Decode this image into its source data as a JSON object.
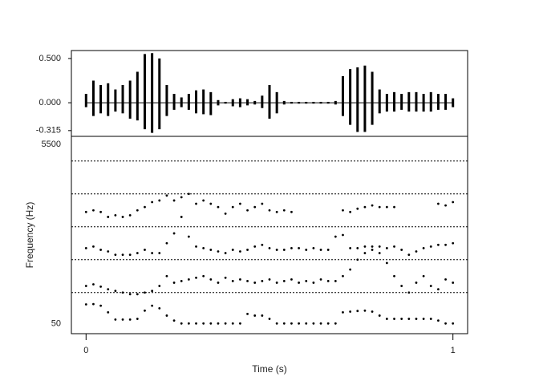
{
  "chart_data": [
    {
      "type": "waveform",
      "x": [
        0,
        0.02,
        0.04,
        0.06,
        0.08,
        0.1,
        0.12,
        0.14,
        0.16,
        0.18,
        0.2,
        0.22,
        0.24,
        0.26,
        0.28,
        0.3,
        0.32,
        0.34,
        0.36,
        0.38,
        0.4,
        0.42,
        0.44,
        0.46,
        0.48,
        0.5,
        0.52,
        0.54,
        0.56,
        0.58,
        0.6,
        0.62,
        0.64,
        0.66,
        0.68,
        0.7,
        0.72,
        0.74,
        0.76,
        0.78,
        0.8,
        0.82,
        0.84,
        0.86,
        0.88,
        0.9,
        0.92,
        0.94,
        0.96,
        0.98,
        1
      ],
      "upper": [
        0.1,
        0.25,
        0.2,
        0.22,
        0.15,
        0.2,
        0.25,
        0.35,
        0.55,
        0.56,
        0.5,
        0.2,
        0.1,
        0.06,
        0.1,
        0.14,
        0.15,
        0.12,
        0.03,
        0.01,
        0.04,
        0.05,
        0.04,
        0.02,
        0.08,
        0.2,
        0.12,
        0.02,
        0.01,
        0.01,
        0.01,
        0.01,
        0.01,
        0.01,
        0.02,
        0.3,
        0.38,
        0.4,
        0.42,
        0.35,
        0.15,
        0.1,
        0.12,
        0.1,
        0.12,
        0.12,
        0.1,
        0.12,
        0.1,
        0.1,
        0.05
      ],
      "lower": [
        -0.05,
        -0.15,
        -0.12,
        -0.15,
        -0.1,
        -0.12,
        -0.18,
        -0.2,
        -0.3,
        -0.34,
        -0.3,
        -0.15,
        -0.08,
        -0.05,
        -0.08,
        -0.12,
        -0.13,
        -0.14,
        -0.03,
        -0.01,
        -0.04,
        -0.05,
        -0.03,
        -0.02,
        -0.06,
        -0.18,
        -0.12,
        -0.02,
        -0.01,
        -0.01,
        -0.01,
        -0.01,
        -0.01,
        -0.01,
        -0.02,
        -0.15,
        -0.25,
        -0.33,
        -0.33,
        -0.25,
        -0.12,
        -0.1,
        -0.1,
        -0.08,
        -0.1,
        -0.1,
        -0.1,
        -0.1,
        -0.08,
        -0.08,
        -0.05
      ],
      "color": "#000000",
      "xlim": [
        -0.04,
        1.04
      ],
      "ylim": [
        -0.38,
        0.59
      ],
      "yticks": [
        {
          "value": 0.5,
          "label": "0.500"
        },
        {
          "value": 0,
          "label": "0.000"
        },
        -0.315
      ]
    },
    {
      "type": "scatter",
      "x_label": "Time (s)",
      "y_label": "Frequency (Hz)",
      "x": [
        0,
        0.02,
        0.04,
        0.06,
        0.08,
        0.1,
        0.12,
        0.14,
        0.16,
        0.18,
        0.2,
        0.22,
        0.24,
        0.26,
        0.28,
        0.3,
        0.32,
        0.34,
        0.36,
        0.38,
        0.4,
        0.42,
        0.44,
        0.46,
        0.48,
        0.5,
        0.52,
        0.54,
        0.56,
        0.58,
        0.6,
        0.62,
        0.64,
        0.66,
        0.68,
        0.7,
        0.72,
        0.74,
        0.76,
        0.78,
        0.8,
        0.82,
        0.84,
        0.86,
        0.88,
        0.9,
        0.92,
        0.94,
        0.96,
        0.98,
        1
      ],
      "series": [
        {
          "color": "#000000",
          "values": [
            640,
            650,
            600,
            400,
            180,
            180,
            180,
            200,
            450,
            600,
            520,
            300,
            150,
            60,
            60,
            60,
            60,
            60,
            60,
            60,
            60,
            60,
            350,
            300,
            300,
            200,
            60,
            60,
            60,
            60,
            60,
            60,
            60,
            60,
            60,
            400,
            420,
            440,
            450,
            420,
            300,
            200,
            200,
            200,
            200,
            200,
            200,
            200,
            150,
            60,
            60
          ]
        },
        {
          "color": "#000000",
          "values": [
            1200,
            1250,
            1180,
            1100,
            1050,
            1000,
            950,
            950,
            1000,
            1050,
            1200,
            1500,
            1300,
            1350,
            1400,
            1450,
            1500,
            1400,
            1300,
            1450,
            1350,
            1400,
            1350,
            1300,
            1350,
            1400,
            1300,
            1350,
            1400,
            1300,
            1350,
            1300,
            1400,
            1350,
            1350,
            1500,
            1700,
            2000,
            2200,
            2300,
            2200,
            1900,
            1500,
            1200,
            1000,
            1300,
            1500,
            1200,
            1100,
            1400,
            1300
          ]
        },
        {
          "color": "#000000",
          "values": [
            2350,
            2400,
            2300,
            2250,
            2150,
            2150,
            2150,
            2200,
            2300,
            2200,
            2200,
            2500,
            2800,
            3300,
            2700,
            2400,
            2350,
            2300,
            2250,
            2200,
            2300,
            2250,
            2300,
            2400,
            2450,
            2350,
            2300,
            2300,
            2350,
            2350,
            2300,
            2350,
            2300,
            2300,
            2700,
            2750,
            2350,
            2350,
            2400,
            2400,
            2400,
            2350,
            2400,
            2300,
            2150,
            2250,
            2350,
            2400,
            2450,
            2450,
            2500
          ]
        },
        {
          "color": "#000000",
          "values": [
            3450,
            3500,
            3450,
            3300,
            3350,
            3300,
            3350,
            3500,
            3600,
            3750,
            3800,
            3950,
            3800,
            3900,
            4000,
            3700,
            3800,
            3700,
            3600,
            3400,
            3600,
            3700,
            3500,
            3600,
            3700,
            3500,
            3450,
            3500,
            3450,
            null,
            null,
            null,
            null,
            null,
            null,
            3500,
            3450,
            3550,
            3600,
            3650,
            3600,
            3600,
            3600,
            null,
            null,
            null,
            null,
            null,
            3700,
            3650,
            3750
          ]
        }
      ],
      "xlim": [
        -0.04,
        1.04
      ],
      "xticks": [
        0,
        1
      ],
      "ylim": [
        -250,
        5750
      ],
      "yticks": [
        50,
        5500
      ],
      "gridlines": [
        1000,
        2000,
        3000,
        4000,
        5000
      ]
    }
  ]
}
